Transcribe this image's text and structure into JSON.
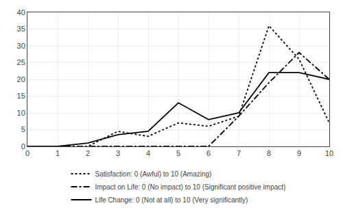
{
  "chart_data": {
    "type": "line",
    "x": [
      0,
      1,
      2,
      3,
      4,
      5,
      6,
      7,
      8,
      9,
      10
    ],
    "series": [
      {
        "name": "Satisfaction: 0 (Awful) to 10 (Amazing)",
        "color": "#000000",
        "line_style": "dotted",
        "values": [
          0,
          0,
          0,
          4.5,
          3,
          7,
          6,
          9,
          36,
          26,
          7
        ]
      },
      {
        "name": "Impact on Life: 0 (No impact) to 10 (Significant positive impact)",
        "color": "#000000",
        "line_style": "dashdot",
        "values": [
          0,
          0,
          0,
          0,
          0,
          0,
          0,
          9,
          19,
          28,
          20
        ]
      },
      {
        "name": "Life Change: 0 (Not at all) to 10 (Very significantly)",
        "color": "#000000",
        "line_style": "solid",
        "values": [
          0,
          0,
          1,
          3.5,
          4.5,
          13,
          8,
          10,
          22,
          22,
          20
        ]
      }
    ],
    "xlim": [
      0,
      10
    ],
    "xticks": [
      0,
      1,
      2,
      3,
      4,
      5,
      6,
      7,
      8,
      9,
      10
    ],
    "ylim": [
      0,
      40
    ],
    "yticks": [
      0,
      5,
      10,
      15,
      20,
      25,
      30,
      35,
      40
    ],
    "grid": true,
    "legend": "bottom"
  }
}
